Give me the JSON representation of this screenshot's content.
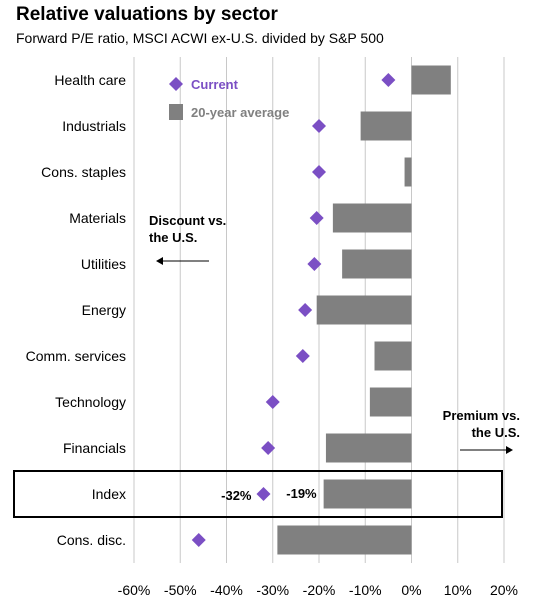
{
  "chart_data": {
    "type": "bar",
    "title": "Relative valuations by sector",
    "subtitle": "Forward P/E ratio, MSCI ACWI ex-U.S. divided by S&P 500",
    "categories": [
      "Health care",
      "Industrials",
      "Cons. staples",
      "Materials",
      "Utilities",
      "Energy",
      "Comm. services",
      "Technology",
      "Financials",
      "Index",
      "Cons. disc."
    ],
    "series": [
      {
        "name": "Current",
        "kind": "diamond",
        "color": "#7B4FC4",
        "values": [
          -5,
          -20,
          -20,
          -20.5,
          -21,
          -23,
          -23.5,
          -30,
          -31,
          -32,
          -46
        ]
      },
      {
        "name": "20-year average",
        "kind": "bar",
        "color": "#808080",
        "values": [
          8.5,
          -11,
          -1.5,
          -17,
          -15,
          -20.5,
          -8,
          -9,
          -18.5,
          -19,
          -29
        ]
      }
    ],
    "xlim": [
      -60,
      20
    ],
    "xticks": [
      -60,
      -50,
      -40,
      -30,
      -20,
      -10,
      0,
      10,
      20
    ],
    "xtick_labels": [
      "-60%",
      "-50%",
      "-40%",
      "-30%",
      "-20%",
      "-10%",
      "0%",
      "10%",
      "20%"
    ],
    "grid": true,
    "legend": "top-left",
    "highlight": {
      "category": "Index",
      "current_label": "-32%",
      "average_label": "-19%"
    },
    "annotations": {
      "discount": [
        "Discount  vs.",
        "the U.S."
      ],
      "premium": [
        "Premium vs.",
        "the U.S."
      ]
    }
  }
}
